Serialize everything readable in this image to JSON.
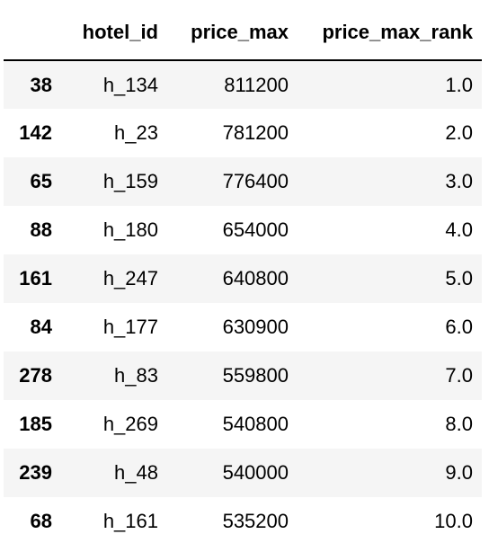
{
  "table": {
    "columns": {
      "index": "",
      "hotel_id": "hotel_id",
      "price_max": "price_max",
      "price_max_rank": "price_max_rank"
    },
    "rows": [
      {
        "index": "38",
        "hotel_id": "h_134",
        "price_max": "811200",
        "price_max_rank": "1.0"
      },
      {
        "index": "142",
        "hotel_id": "h_23",
        "price_max": "781200",
        "price_max_rank": "2.0"
      },
      {
        "index": "65",
        "hotel_id": "h_159",
        "price_max": "776400",
        "price_max_rank": "3.0"
      },
      {
        "index": "88",
        "hotel_id": "h_180",
        "price_max": "654000",
        "price_max_rank": "4.0"
      },
      {
        "index": "161",
        "hotel_id": "h_247",
        "price_max": "640800",
        "price_max_rank": "5.0"
      },
      {
        "index": "84",
        "hotel_id": "h_177",
        "price_max": "630900",
        "price_max_rank": "6.0"
      },
      {
        "index": "278",
        "hotel_id": "h_83",
        "price_max": "559800",
        "price_max_rank": "7.0"
      },
      {
        "index": "185",
        "hotel_id": "h_269",
        "price_max": "540800",
        "price_max_rank": "8.0"
      },
      {
        "index": "239",
        "hotel_id": "h_48",
        "price_max": "540000",
        "price_max_rank": "9.0"
      },
      {
        "index": "68",
        "hotel_id": "h_161",
        "price_max": "535200",
        "price_max_rank": "10.0"
      }
    ]
  },
  "colors": {
    "stripe": "#f5f5f5",
    "background": "#ffffff",
    "text": "#000000",
    "header_rule": "#000000"
  }
}
